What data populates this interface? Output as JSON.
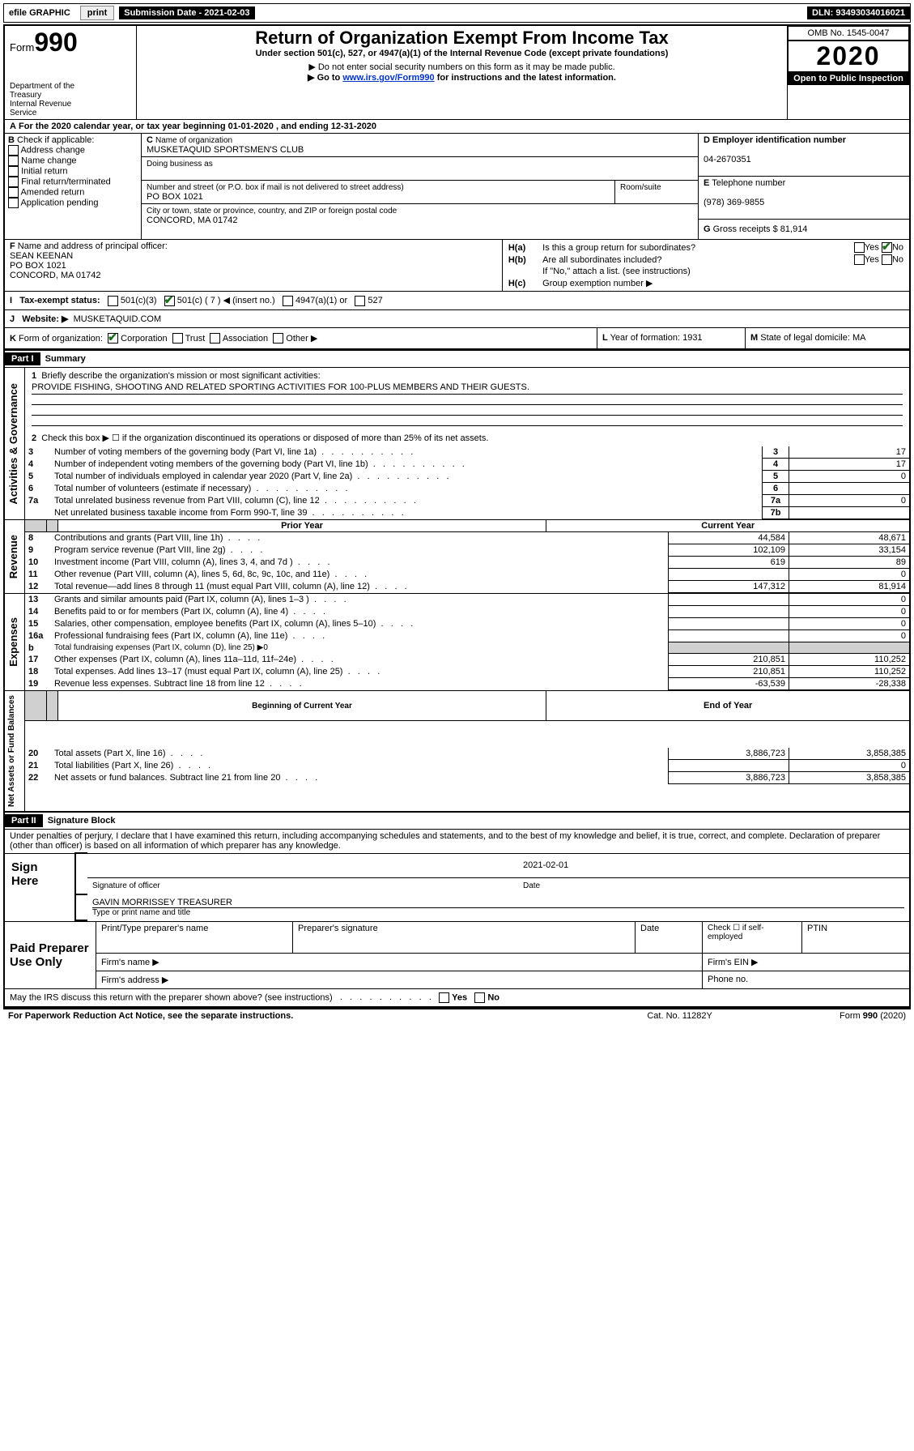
{
  "topbar": {
    "efile": "efile GRAPHIC",
    "print_btn": "print",
    "submission_label": "Submission Date - 2021-02-03",
    "dln_label": "DLN: 93493034016021"
  },
  "header": {
    "form_prefix": "Form",
    "form_number": "990",
    "dept": "Department of the Treasury\nInternal Revenue Service",
    "title": "Return of Organization Exempt From Income Tax",
    "subtitle": "Under section 501(c), 527, or 4947(a)(1) of the Internal Revenue Code (except private foundations)",
    "note1": "▶ Do not enter social security numbers on this form as it may be made public.",
    "note2_pre": "▶ Go to ",
    "note2_link": "www.irs.gov/Form990",
    "note2_post": " for instructions and the latest information.",
    "omb": "OMB No. 1545-0047",
    "year": "2020",
    "open": "Open to Public Inspection"
  },
  "A": {
    "text": "For the 2020 calendar year, or tax year beginning 01-01-2020   , and ending 12-31-2020"
  },
  "B": {
    "label": "Check if applicable:",
    "opts": [
      "Address change",
      "Name change",
      "Initial return",
      "Final return/terminated",
      "Amended return",
      "Application pending"
    ]
  },
  "C": {
    "name_label": "Name of organization",
    "name": "MUSKETAQUID SPORTSMEN'S CLUB",
    "dba_label": "Doing business as",
    "addr_label": "Number and street (or P.O. box if mail is not delivered to street address)",
    "room_label": "Room/suite",
    "addr": "PO BOX 1021",
    "city_label": "City or town, state or province, country, and ZIP or foreign postal code",
    "city": "CONCORD, MA  01742"
  },
  "D": {
    "label": "Employer identification number",
    "value": "04-2670351"
  },
  "E": {
    "label": "Telephone number",
    "value": "(978) 369-9855"
  },
  "G": {
    "label": "Gross receipts $",
    "value": "81,914"
  },
  "F": {
    "label": "Name and address of principal officer:",
    "name": "SEAN KEENAN",
    "addr1": "PO BOX 1021",
    "addr2": "CONCORD, MA  01742"
  },
  "H": {
    "a_label": "Is this a group return for subordinates?",
    "a_yes": "Yes",
    "a_no": "No",
    "b_label": "Are all subordinates included?",
    "b_note": "If \"No,\" attach a list. (see instructions)",
    "c_label": "Group exemption number ▶"
  },
  "I": {
    "label": "Tax-exempt status:",
    "opts": [
      "501(c)(3)",
      "501(c) ( 7 ) ◀ (insert no.)",
      "4947(a)(1) or",
      "527"
    ]
  },
  "J": {
    "label": "Website: ▶",
    "value": "MUSKETAQUID.COM"
  },
  "K": {
    "label": "Form of organization:",
    "opts": [
      "Corporation",
      "Trust",
      "Association",
      "Other ▶"
    ]
  },
  "L": {
    "label": "Year of formation:",
    "value": "1931"
  },
  "M": {
    "label": "State of legal domicile:",
    "value": "MA"
  },
  "part1": {
    "title": "Part I",
    "subtitle": "Summary",
    "sections": {
      "gov_label": "Activities & Governance",
      "rev_label": "Revenue",
      "exp_label": "Expenses",
      "net_label": "Net Assets or Fund Balances"
    },
    "l1_label": "Briefly describe the organization's mission or most significant activities:",
    "l1_value": "PROVIDE FISHING, SHOOTING AND RELATED SPORTING ACTIVITIES FOR 100-PLUS MEMBERS AND THEIR GUESTS.",
    "l2_label": "Check this box ▶ ☐  if the organization discontinued its operations or disposed of more than 25% of its net assets.",
    "lines_gov": [
      {
        "n": "3",
        "t": "Number of voting members of the governing body (Part VI, line 1a)",
        "box": "3",
        "v": "17"
      },
      {
        "n": "4",
        "t": "Number of independent voting members of the governing body (Part VI, line 1b)",
        "box": "4",
        "v": "17"
      },
      {
        "n": "5",
        "t": "Total number of individuals employed in calendar year 2020 (Part V, line 2a)",
        "box": "5",
        "v": "0"
      },
      {
        "n": "6",
        "t": "Total number of volunteers (estimate if necessary)",
        "box": "6",
        "v": ""
      },
      {
        "n": "7a",
        "t": "Total unrelated business revenue from Part VIII, column (C), line 12",
        "box": "7a",
        "v": "0"
      },
      {
        "n": "",
        "t": "Net unrelated business taxable income from Form 990-T, line 39",
        "box": "7b",
        "v": ""
      }
    ],
    "col_prior": "Prior Year",
    "col_current": "Current Year",
    "lines_rev": [
      {
        "n": "8",
        "t": "Contributions and grants (Part VIII, line 1h)",
        "p": "44,584",
        "c": "48,671"
      },
      {
        "n": "9",
        "t": "Program service revenue (Part VIII, line 2g)",
        "p": "102,109",
        "c": "33,154"
      },
      {
        "n": "10",
        "t": "Investment income (Part VIII, column (A), lines 3, 4, and 7d )",
        "p": "619",
        "c": "89"
      },
      {
        "n": "11",
        "t": "Other revenue (Part VIII, column (A), lines 5, 6d, 8c, 9c, 10c, and 11e)",
        "p": "",
        "c": "0"
      },
      {
        "n": "12",
        "t": "Total revenue—add lines 8 through 11 (must equal Part VIII, column (A), line 12)",
        "p": "147,312",
        "c": "81,914"
      }
    ],
    "lines_exp": [
      {
        "n": "13",
        "t": "Grants and similar amounts paid (Part IX, column (A), lines 1–3 )",
        "p": "",
        "c": "0"
      },
      {
        "n": "14",
        "t": "Benefits paid to or for members (Part IX, column (A), line 4)",
        "p": "",
        "c": "0"
      },
      {
        "n": "15",
        "t": "Salaries, other compensation, employee benefits (Part IX, column (A), lines 5–10)",
        "p": "",
        "c": "0"
      },
      {
        "n": "16a",
        "t": "Professional fundraising fees (Part IX, column (A), line 11e)",
        "p": "",
        "c": "0"
      },
      {
        "n": "b",
        "t": "Total fundraising expenses (Part IX, column (D), line 25) ▶0",
        "p": null,
        "c": null
      },
      {
        "n": "17",
        "t": "Other expenses (Part IX, column (A), lines 11a–11d, 11f–24e)",
        "p": "210,851",
        "c": "110,252"
      },
      {
        "n": "18",
        "t": "Total expenses. Add lines 13–17 (must equal Part IX, column (A), line 25)",
        "p": "210,851",
        "c": "110,252"
      },
      {
        "n": "19",
        "t": "Revenue less expenses. Subtract line 18 from line 12",
        "p": "-63,539",
        "c": "-28,338"
      }
    ],
    "col_begin": "Beginning of Current Year",
    "col_end": "End of Year",
    "lines_net": [
      {
        "n": "20",
        "t": "Total assets (Part X, line 16)",
        "p": "3,886,723",
        "c": "3,858,385"
      },
      {
        "n": "21",
        "t": "Total liabilities (Part X, line 26)",
        "p": "",
        "c": "0"
      },
      {
        "n": "22",
        "t": "Net assets or fund balances. Subtract line 21 from line 20",
        "p": "3,886,723",
        "c": "3,858,385"
      }
    ]
  },
  "part2": {
    "title": "Part II",
    "subtitle": "Signature Block",
    "declare": "Under penalties of perjury, I declare that I have examined this return, including accompanying schedules and statements, and to the best of my knowledge and belief, it is true, correct, and complete. Declaration of preparer (other than officer) is based on all information of which preparer has any knowledge.",
    "sign_here": "Sign Here",
    "sig_officer": "Signature of officer",
    "date_label": "Date",
    "date_value": "2021-02-01",
    "name_title": "GAVIN MORRISSEY TREASURER",
    "name_title_label": "Type or print name and title",
    "paid": "Paid Preparer Use Only",
    "preparer_name": "Print/Type preparer's name",
    "preparer_sig": "Preparer's signature",
    "date2": "Date",
    "check_self": "Check ☐ if self-employed",
    "ptin": "PTIN",
    "firm_name": "Firm's name  ▶",
    "firm_ein": "Firm's EIN ▶",
    "firm_addr": "Firm's address ▶",
    "phone": "Phone no.",
    "discuss": "May the IRS discuss this return with the preparer shown above? (see instructions)",
    "yes": "Yes",
    "no": "No"
  },
  "footer": {
    "pra": "For Paperwork Reduction Act Notice, see the separate instructions.",
    "cat": "Cat. No. 11282Y",
    "form": "Form 990 (2020)"
  }
}
